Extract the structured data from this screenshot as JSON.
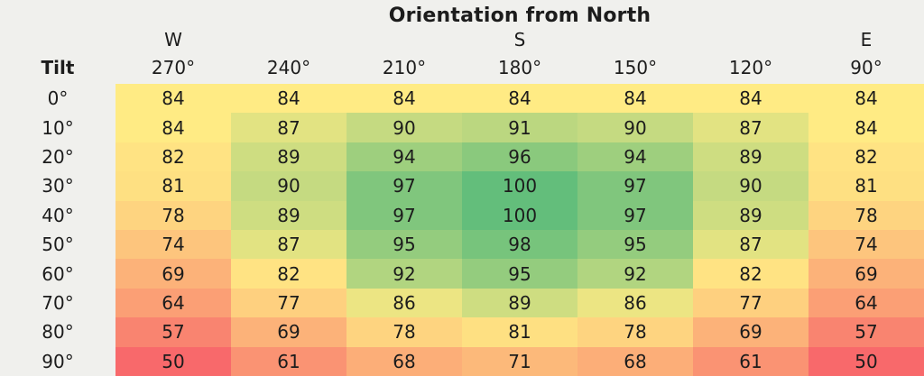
{
  "colors": {
    "background": "#F0F0ED",
    "text": "#1C1C1C"
  },
  "chart_data": {
    "type": "heatmap",
    "title": "Orientation from North",
    "row_header": "Tilt",
    "columns": [
      "270°",
      "240°",
      "210°",
      "180°",
      "150°",
      "120°",
      "90°"
    ],
    "column_direction_labels": [
      "W",
      "",
      "",
      "S",
      "",
      "",
      "E"
    ],
    "rows": [
      "0°",
      "10°",
      "20°",
      "30°",
      "40°",
      "50°",
      "60°",
      "70°",
      "80°",
      "90°"
    ],
    "values": [
      [
        84,
        84,
        84,
        84,
        84,
        84,
        84
      ],
      [
        84,
        87,
        90,
        91,
        90,
        87,
        84
      ],
      [
        82,
        89,
        94,
        96,
        94,
        89,
        82
      ],
      [
        81,
        90,
        97,
        100,
        97,
        90,
        81
      ],
      [
        78,
        89,
        97,
        100,
        97,
        89,
        78
      ],
      [
        74,
        87,
        95,
        98,
        95,
        87,
        74
      ],
      [
        69,
        82,
        92,
        95,
        92,
        82,
        69
      ],
      [
        64,
        77,
        86,
        89,
        86,
        77,
        64
      ],
      [
        57,
        69,
        78,
        81,
        78,
        69,
        57
      ],
      [
        50,
        61,
        68,
        71,
        68,
        61,
        50
      ]
    ],
    "value_range": [
      50,
      100
    ],
    "colormap": {
      "stops": [
        {
          "value": 50,
          "color": "#F8696B"
        },
        {
          "value": 84,
          "color": "#FFEB84"
        },
        {
          "value": 100,
          "color": "#63BE7B"
        }
      ]
    },
    "legend": "none",
    "grid": false
  }
}
